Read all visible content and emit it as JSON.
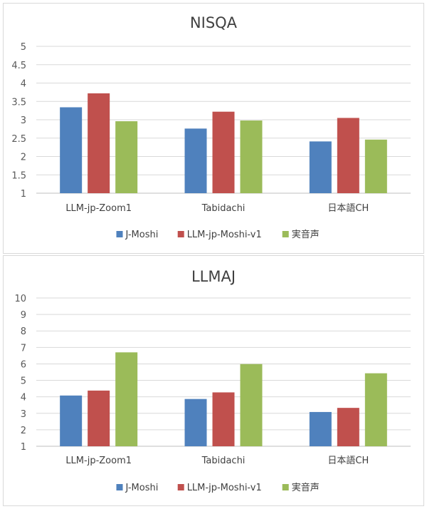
{
  "chart_data": [
    {
      "type": "bar",
      "title": "NISQA",
      "categories": [
        "LLM-jp-Zoom1",
        "Tabidachi",
        "日本語CH"
      ],
      "series": [
        {
          "name": "J-Moshi",
          "color": "#4f81bd",
          "values": [
            3.34,
            2.76,
            2.41
          ]
        },
        {
          "name": "LLM-jp-Moshi-v1",
          "color": "#c0504d",
          "values": [
            3.72,
            3.22,
            3.05
          ]
        },
        {
          "name": "実音声",
          "color": "#9bbb59",
          "values": [
            2.96,
            2.98,
            2.46
          ]
        }
      ],
      "y_ticks": [
        "1",
        "1.5",
        "2",
        "2.5",
        "3",
        "3.5",
        "4",
        "4.5",
        "5"
      ],
      "ylim": [
        1,
        5
      ],
      "grid": true,
      "legend": "bottom"
    },
    {
      "type": "bar",
      "title": "LLMAJ",
      "categories": [
        "LLM-jp-Zoom1",
        "Tabidachi",
        "日本語CH"
      ],
      "series": [
        {
          "name": "J-Moshi",
          "color": "#4f81bd",
          "values": [
            4.08,
            3.87,
            3.08
          ]
        },
        {
          "name": "LLM-jp-Moshi-v1",
          "color": "#c0504d",
          "values": [
            4.38,
            4.27,
            3.33
          ]
        },
        {
          "name": "実音声",
          "color": "#9bbb59",
          "values": [
            6.7,
            5.99,
            5.43
          ]
        }
      ],
      "y_ticks": [
        "1",
        "2",
        "3",
        "4",
        "5",
        "6",
        "7",
        "8",
        "9",
        "10"
      ],
      "ylim": [
        1,
        10
      ],
      "grid": true,
      "legend": "bottom"
    }
  ]
}
